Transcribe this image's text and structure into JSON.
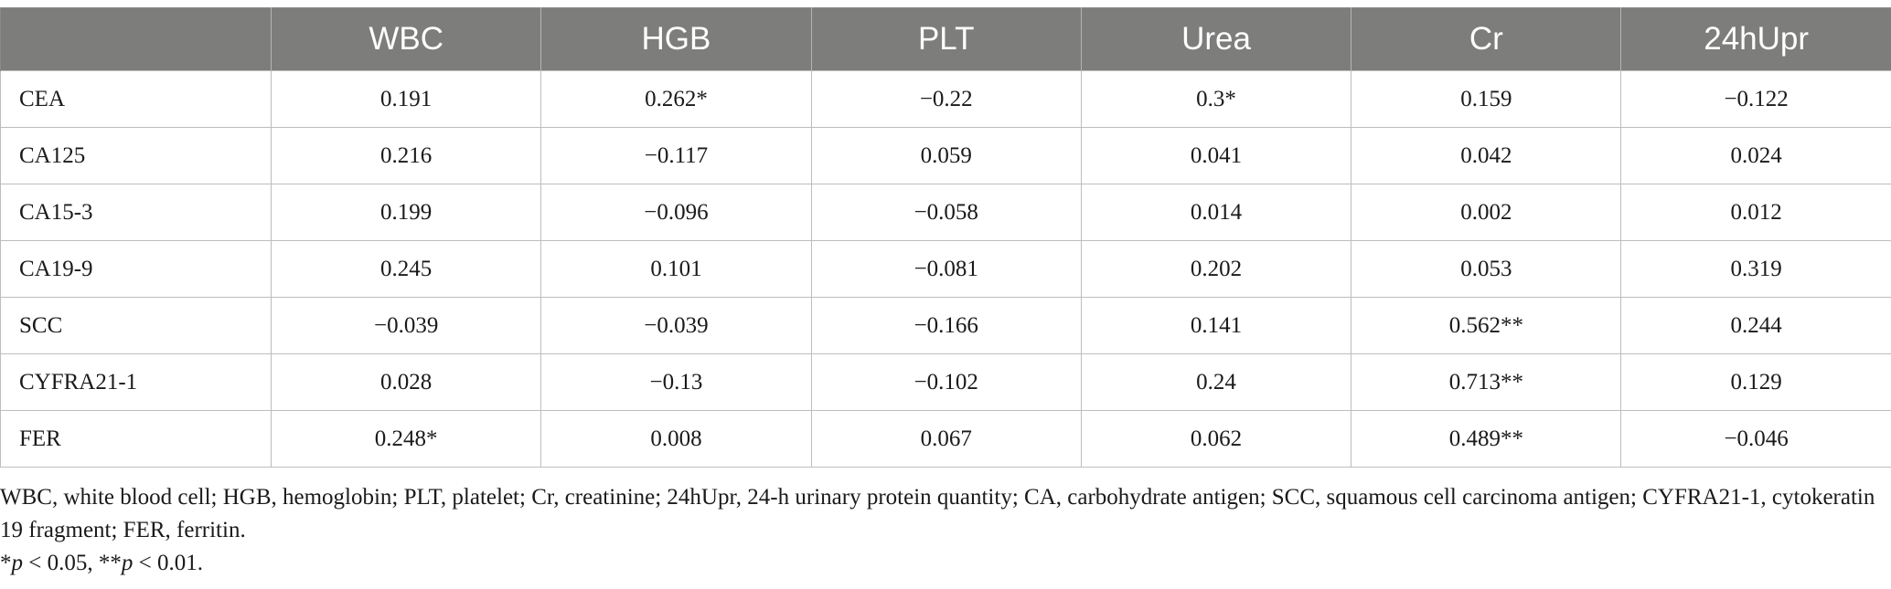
{
  "table": {
    "corner_label": "",
    "columns": [
      "WBC",
      "HGB",
      "PLT",
      "Urea",
      "Cr",
      "24hUpr"
    ],
    "rows": [
      {
        "label": "CEA",
        "cells": [
          "0.191",
          "0.262*",
          "−0.22",
          "0.3*",
          "0.159",
          "−0.122"
        ]
      },
      {
        "label": "CA125",
        "cells": [
          "0.216",
          "−0.117",
          "0.059",
          "0.041",
          "0.042",
          "0.024"
        ]
      },
      {
        "label": "CA15-3",
        "cells": [
          "0.199",
          "−0.096",
          "−0.058",
          "0.014",
          "0.002",
          "0.012"
        ]
      },
      {
        "label": "CA19-9",
        "cells": [
          "0.245",
          "0.101",
          "−0.081",
          "0.202",
          "0.053",
          "0.319"
        ]
      },
      {
        "label": "SCC",
        "cells": [
          "−0.039",
          "−0.039",
          "−0.166",
          "0.141",
          "0.562**",
          "0.244"
        ]
      },
      {
        "label": "CYFRA21-1",
        "cells": [
          "0.028",
          "−0.13",
          "−0.102",
          "0.24",
          "0.713**",
          "0.129"
        ]
      },
      {
        "label": "FER",
        "cells": [
          "0.248*",
          "0.008",
          "0.067",
          "0.062",
          "0.489**",
          "−0.046"
        ]
      }
    ]
  },
  "footnote": {
    "abbreviations": "WBC, white blood cell; HGB, hemoglobin; PLT, platelet; Cr, creatinine; 24hUpr, 24-h urinary protein quantity; CA, carbohydrate antigen; SCC, squamous cell carcinoma antigen; CYFRA21-1, cytokeratin 19 fragment; FER, ferritin.",
    "sig_1_prefix": "*",
    "sig_1_var": "p",
    "sig_1_rest": " < 0.05, **",
    "sig_2_var": "p",
    "sig_2_rest": " < 0.01."
  },
  "colors": {
    "header_bg": "#7d7d7c",
    "header_text": "#ffffff",
    "grid": "#bdbdbd"
  }
}
